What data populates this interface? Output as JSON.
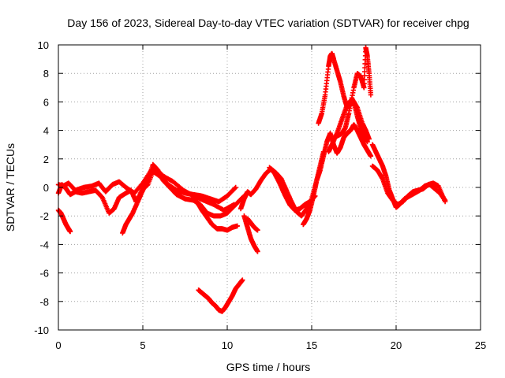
{
  "chart_data": {
    "type": "scatter",
    "title": "Day 156 of 2023, Sidereal Day-to-day VTEC variation (SDTVAR) for receiver chpg",
    "xlabel": "GPS time / hours",
    "ylabel": "SDTVAR / TECUs",
    "xlim": [
      0,
      25
    ],
    "ylim": [
      -10,
      10
    ],
    "xticks": [
      0,
      5,
      10,
      15,
      20,
      25
    ],
    "yticks": [
      -10,
      -8,
      -6,
      -4,
      -2,
      0,
      2,
      4,
      6,
      8,
      10
    ],
    "grid": true,
    "marker": "plus",
    "color": "#ff0000",
    "series": [
      {
        "name": "s1",
        "x": [
          0.0,
          0.3,
          0.6,
          1.0,
          1.5,
          2.0,
          2.4,
          2.8,
          3.2,
          3.6,
          4.0,
          4.5,
          5.0,
          5.5,
          6.0,
          6.5,
          7.0,
          7.5,
          8.0,
          8.5,
          9.0,
          9.5,
          10.0,
          10.5
        ],
        "y": [
          0.2,
          0.1,
          0.3,
          -0.2,
          0.0,
          0.1,
          0.3,
          -0.3,
          0.2,
          0.4,
          0.0,
          -0.4,
          0.3,
          1.2,
          0.8,
          0.2,
          -0.2,
          -0.4,
          -0.5,
          -0.6,
          -0.8,
          -1.0,
          -0.6,
          0.0
        ]
      },
      {
        "name": "s2",
        "x": [
          0.0,
          0.2,
          0.4,
          0.7,
          1.0,
          1.4,
          1.8,
          2.2,
          2.6,
          3.0,
          3.3,
          3.6,
          4.0,
          4.3,
          4.6,
          5.0,
          5.3,
          5.7,
          6.2,
          6.8,
          7.4,
          8.0,
          8.6,
          9.2,
          9.8,
          10.4
        ],
        "y": [
          -0.4,
          0.2,
          0.0,
          -0.5,
          -0.3,
          -0.4,
          -0.3,
          -0.2,
          -0.7,
          -1.8,
          -1.5,
          -0.7,
          -0.4,
          -0.2,
          -1.0,
          -0.1,
          0.2,
          1.4,
          0.8,
          0.4,
          -0.2,
          -0.6,
          -0.9,
          -1.2,
          -1.6,
          -1.2
        ]
      },
      {
        "name": "s3",
        "x": [
          0.0,
          0.15,
          0.3,
          0.45,
          0.6,
          0.7
        ],
        "y": [
          -1.6,
          -1.8,
          -2.2,
          -2.6,
          -2.9,
          -3.1
        ]
      },
      {
        "name": "s4",
        "x": [
          3.8,
          4.0,
          4.2,
          4.4,
          4.7,
          5.0,
          5.3,
          5.6,
          5.9,
          6.2,
          6.6,
          7.0,
          7.5,
          8.0,
          8.4,
          8.8,
          9.2,
          9.6,
          10.0,
          10.5,
          11.0
        ],
        "y": [
          -3.2,
          -2.6,
          -2.2,
          -1.8,
          -1.0,
          -0.2,
          0.5,
          1.6,
          1.2,
          0.5,
          0.0,
          -0.5,
          -0.8,
          -0.9,
          -1.2,
          -1.8,
          -2.0,
          -2.0,
          -1.8,
          -1.2,
          -0.6
        ]
      },
      {
        "name": "s5",
        "x": [
          8.2,
          8.5,
          8.8,
          9.1,
          9.4,
          9.7,
          10.0,
          10.3,
          10.6
        ],
        "y": [
          -1.0,
          -1.6,
          -2.1,
          -2.6,
          -2.9,
          -2.9,
          -3.0,
          -2.8,
          -2.7
        ]
      },
      {
        "name": "s6",
        "x": [
          8.3,
          8.5,
          8.7,
          8.9,
          9.1,
          9.3,
          9.5,
          9.7,
          9.9,
          10.1,
          10.3,
          10.5,
          10.7,
          10.9
        ],
        "y": [
          -7.2,
          -7.4,
          -7.6,
          -7.8,
          -8.1,
          -8.3,
          -8.6,
          -8.7,
          -8.4,
          -8.0,
          -7.6,
          -7.1,
          -6.8,
          -6.5
        ]
      },
      {
        "name": "s7",
        "x": [
          11.0,
          11.2,
          11.4,
          11.6,
          11.8
        ],
        "y": [
          -2.0,
          -2.8,
          -3.6,
          -4.1,
          -4.5
        ]
      },
      {
        "name": "s8",
        "x": [
          11.2,
          11.4,
          11.6,
          11.8
        ],
        "y": [
          -2.2,
          -2.5,
          -2.8,
          -3.0
        ]
      },
      {
        "name": "s9",
        "x": [
          10.8,
          11.0,
          11.2,
          11.4,
          11.7,
          12.0,
          12.3,
          12.6,
          12.9,
          13.2,
          13.5,
          13.8,
          14.1,
          14.4,
          14.7,
          15.0,
          15.3,
          15.5,
          15.7
        ],
        "y": [
          -1.5,
          -0.8,
          -0.3,
          -0.5,
          -0.1,
          0.5,
          1.0,
          1.3,
          1.0,
          0.6,
          -0.2,
          -1.0,
          -1.7,
          -2.0,
          -1.5,
          -0.8,
          0.5,
          1.5,
          2.5
        ]
      },
      {
        "name": "s10",
        "x": [
          12.5,
          12.8,
          13.1,
          13.4,
          13.7,
          14.0,
          14.3,
          14.6,
          14.9,
          15.2
        ],
        "y": [
          1.4,
          1.0,
          0.3,
          -0.5,
          -1.2,
          -1.6,
          -1.5,
          -1.2,
          -1.0,
          -0.6
        ]
      },
      {
        "name": "s11",
        "x": [
          14.5,
          14.7,
          14.9,
          15.1,
          15.3,
          15.5,
          15.7,
          15.9,
          16.1,
          16.3,
          16.5,
          16.7,
          16.9,
          17.1,
          17.3,
          17.5,
          17.7,
          17.9,
          18.1,
          18.3,
          18.5
        ],
        "y": [
          -2.6,
          -2.2,
          -1.6,
          -0.6,
          0.5,
          1.2,
          2.2,
          3.2,
          3.8,
          3.0,
          2.4,
          2.8,
          3.5,
          3.8,
          4.0,
          4.4,
          4.0,
          3.5,
          3.0,
          2.6,
          2.2
        ]
      },
      {
        "name": "s12",
        "x": [
          15.4,
          15.6,
          15.8,
          16.0,
          16.1,
          16.2,
          16.3,
          16.5,
          16.7,
          16.9,
          17.1,
          17.3,
          17.5,
          17.7,
          17.9,
          18.1,
          18.3
        ],
        "y": [
          4.5,
          5.2,
          6.5,
          8.5,
          9.2,
          9.4,
          9.0,
          8.2,
          7.4,
          6.4,
          5.6,
          5.8,
          6.0,
          5.0,
          4.2,
          3.6,
          3.2
        ]
      },
      {
        "name": "s13",
        "x": [
          16.0,
          16.2,
          16.5,
          16.8,
          17.1,
          17.4,
          17.7,
          18.0,
          18.2,
          18.4
        ],
        "y": [
          2.5,
          3.0,
          3.8,
          4.8,
          5.8,
          6.2,
          5.6,
          4.5,
          4.0,
          3.4
        ]
      },
      {
        "name": "s14",
        "x": [
          16.5,
          16.8,
          17.0,
          17.2,
          17.5,
          17.7,
          17.9,
          18.1,
          18.2,
          18.3,
          18.4,
          18.5
        ],
        "y": [
          3.6,
          3.8,
          4.2,
          5.2,
          7.0,
          8.0,
          7.8,
          7.0,
          9.8,
          9.2,
          8.0,
          6.5
        ]
      },
      {
        "name": "s15",
        "x": [
          18.6,
          18.8,
          19.0,
          19.2,
          19.4,
          19.6,
          19.8,
          20.0,
          20.2,
          20.5,
          20.8,
          21.1,
          21.4,
          21.7,
          22.0,
          22.3,
          22.6,
          22.9
        ],
        "y": [
          3.0,
          2.5,
          2.0,
          1.5,
          0.8,
          -0.2,
          -0.8,
          -1.4,
          -1.2,
          -0.8,
          -0.6,
          -0.4,
          -0.2,
          0.1,
          0.2,
          -0.1,
          -0.4,
          -0.9
        ]
      },
      {
        "name": "s16",
        "x": [
          18.6,
          18.9,
          19.2,
          19.5,
          19.8,
          20.1,
          20.4,
          20.7,
          21.0,
          21.3,
          21.6,
          21.9,
          22.2,
          22.5,
          22.9
        ],
        "y": [
          1.5,
          1.2,
          0.6,
          -0.4,
          -0.9,
          -1.2,
          -1.0,
          -0.6,
          -0.3,
          -0.2,
          -0.1,
          0.2,
          0.3,
          0.1,
          -1.0
        ]
      }
    ]
  }
}
